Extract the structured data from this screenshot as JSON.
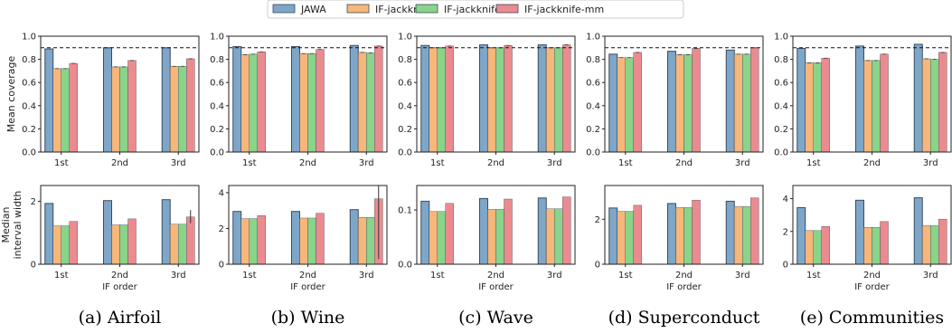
{
  "legend": [
    {
      "name": "JAWA",
      "color": "#7ea6c8"
    },
    {
      "name": "IF-jackknife",
      "color": "#f7b77a"
    },
    {
      "name": "IF-jackknife+",
      "color": "#8ad48a"
    },
    {
      "name": "IF-jackknife-mm",
      "color": "#ec8b8f"
    }
  ],
  "row_labels": {
    "top": [
      "Mean coverage"
    ],
    "bottom": [
      "Median",
      "interval width"
    ]
  },
  "x_tick_labels": [
    "1st",
    "2nd",
    "3rd"
  ],
  "x_axis_label": "IF order",
  "chart_data": [
    {
      "type": "bar",
      "caption": "(a) Airfoil",
      "row": "coverage",
      "categories": [
        "1st",
        "2nd",
        "3rd"
      ],
      "ylim": [
        0,
        1.0
      ],
      "yticks": [
        "0.0",
        "0.2",
        "0.4",
        "0.6",
        "0.8",
        "1.0"
      ],
      "reference_line": 0.9,
      "series": [
        {
          "name": "JAWA",
          "values": [
            0.89,
            0.9,
            0.9
          ]
        },
        {
          "name": "IF-jackknife",
          "values": [
            0.72,
            0.735,
            0.74
          ]
        },
        {
          "name": "IF-jackknife+",
          "values": [
            0.72,
            0.735,
            0.74
          ]
        },
        {
          "name": "IF-jackknife-mm",
          "values": [
            0.765,
            0.79,
            0.805
          ]
        }
      ]
    },
    {
      "type": "bar",
      "caption": "(b) Wine",
      "row": "coverage",
      "categories": [
        "1st",
        "2nd",
        "3rd"
      ],
      "ylim": [
        0,
        1.0
      ],
      "yticks": [
        "0.0",
        "0.2",
        "0.4",
        "0.6",
        "0.8",
        "1.0"
      ],
      "reference_line": 0.9,
      "series": [
        {
          "name": "JAWA",
          "values": [
            0.91,
            0.91,
            0.92
          ]
        },
        {
          "name": "IF-jackknife",
          "values": [
            0.84,
            0.85,
            0.86
          ]
        },
        {
          "name": "IF-jackknife+",
          "values": [
            0.845,
            0.85,
            0.855
          ]
        },
        {
          "name": "IF-jackknife-mm",
          "values": [
            0.865,
            0.885,
            0.915
          ]
        }
      ]
    },
    {
      "type": "bar",
      "caption": "(c) Wave",
      "row": "coverage",
      "categories": [
        "1st",
        "2nd",
        "3rd"
      ],
      "ylim": [
        0,
        1.0
      ],
      "yticks": [
        "0.0",
        "0.2",
        "0.4",
        "0.6",
        "0.8",
        "1.0"
      ],
      "reference_line": 0.9,
      "series": [
        {
          "name": "JAWA",
          "values": [
            0.92,
            0.925,
            0.925
          ]
        },
        {
          "name": "IF-jackknife",
          "values": [
            0.9,
            0.9,
            0.9
          ]
        },
        {
          "name": "IF-jackknife+",
          "values": [
            0.9,
            0.9,
            0.9
          ]
        },
        {
          "name": "IF-jackknife-mm",
          "values": [
            0.915,
            0.92,
            0.925
          ]
        }
      ]
    },
    {
      "type": "bar",
      "caption": "(d) Superconduct",
      "row": "coverage",
      "categories": [
        "1st",
        "2nd",
        "3rd"
      ],
      "ylim": [
        0,
        1.0
      ],
      "yticks": [
        "0.0",
        "0.2",
        "0.4",
        "0.6",
        "0.8",
        "1.0"
      ],
      "reference_line": 0.9,
      "series": [
        {
          "name": "JAWA",
          "values": [
            0.845,
            0.87,
            0.88
          ]
        },
        {
          "name": "IF-jackknife",
          "values": [
            0.815,
            0.84,
            0.845
          ]
        },
        {
          "name": "IF-jackknife+",
          "values": [
            0.815,
            0.84,
            0.845
          ]
        },
        {
          "name": "IF-jackknife-mm",
          "values": [
            0.86,
            0.895,
            0.9
          ]
        }
      ]
    },
    {
      "type": "bar",
      "caption": "(e) Communities",
      "row": "coverage",
      "categories": [
        "1st",
        "2nd",
        "3rd"
      ],
      "ylim": [
        0,
        1.0
      ],
      "yticks": [
        "0.0",
        "0.2",
        "0.4",
        "0.6",
        "0.8",
        "1.0"
      ],
      "reference_line": 0.9,
      "series": [
        {
          "name": "JAWA",
          "values": [
            0.895,
            0.915,
            0.93
          ]
        },
        {
          "name": "IF-jackknife",
          "values": [
            0.77,
            0.79,
            0.805
          ]
        },
        {
          "name": "IF-jackknife+",
          "values": [
            0.77,
            0.79,
            0.8
          ]
        },
        {
          "name": "IF-jackknife-mm",
          "values": [
            0.81,
            0.845,
            0.86
          ]
        }
      ]
    },
    {
      "type": "bar",
      "caption": "(a) Airfoil",
      "row": "width",
      "categories": [
        "1st",
        "2nd",
        "3rd"
      ],
      "ylim": [
        0,
        2.5
      ],
      "yticks": [
        "0",
        "2"
      ],
      "ytick_values": [
        0,
        2
      ],
      "series": [
        {
          "name": "JAWA",
          "values": [
            1.93,
            2.02,
            2.05
          ]
        },
        {
          "name": "IF-jackknife",
          "values": [
            1.22,
            1.25,
            1.27
          ]
        },
        {
          "name": "IF-jackknife+",
          "values": [
            1.22,
            1.25,
            1.27
          ]
        },
        {
          "name": "IF-jackknife-mm",
          "values": [
            1.36,
            1.44,
            1.5
          ]
        }
      ],
      "error_bar": {
        "series": "IF-jackknife-mm",
        "index": 2,
        "low": 1.3,
        "high": 1.72
      }
    },
    {
      "type": "bar",
      "caption": "(b) Wine",
      "row": "width",
      "categories": [
        "1st",
        "2nd",
        "3rd"
      ],
      "ylim": [
        0,
        4.4
      ],
      "yticks": [
        "0",
        "2",
        "4"
      ],
      "ytick_values": [
        0,
        2,
        4
      ],
      "series": [
        {
          "name": "JAWA",
          "values": [
            2.95,
            2.95,
            3.05
          ]
        },
        {
          "name": "IF-jackknife",
          "values": [
            2.55,
            2.58,
            2.62
          ]
        },
        {
          "name": "IF-jackknife+",
          "values": [
            2.55,
            2.58,
            2.62
          ]
        },
        {
          "name": "IF-jackknife-mm",
          "values": [
            2.72,
            2.85,
            3.65
          ]
        }
      ],
      "error_bar": {
        "series": "IF-jackknife-mm",
        "index": 2,
        "low": 0.3,
        "high": 4.4
      }
    },
    {
      "type": "bar",
      "caption": "(c) Wave",
      "row": "width",
      "categories": [
        "1st",
        "2nd",
        "3rd"
      ],
      "ylim": [
        0,
        0.145
      ],
      "yticks": [
        "0.0",
        "0.1"
      ],
      "ytick_values": [
        0,
        0.1
      ],
      "series": [
        {
          "name": "JAWA",
          "values": [
            0.116,
            0.121,
            0.122
          ]
        },
        {
          "name": "IF-jackknife",
          "values": [
            0.097,
            0.101,
            0.102
          ]
        },
        {
          "name": "IF-jackknife+",
          "values": [
            0.097,
            0.101,
            0.102
          ]
        },
        {
          "name": "IF-jackknife-mm",
          "values": [
            0.112,
            0.12,
            0.124
          ]
        }
      ]
    },
    {
      "type": "bar",
      "caption": "(d) Superconduct",
      "row": "width",
      "categories": [
        "1st",
        "2nd",
        "3rd"
      ],
      "ylim": [
        0,
        3.5
      ],
      "yticks": [
        "0",
        "2"
      ],
      "ytick_values": [
        0,
        2
      ],
      "series": [
        {
          "name": "JAWA",
          "values": [
            2.5,
            2.7,
            2.8
          ]
        },
        {
          "name": "IF-jackknife",
          "values": [
            2.35,
            2.52,
            2.57
          ]
        },
        {
          "name": "IF-jackknife+",
          "values": [
            2.35,
            2.52,
            2.57
          ]
        },
        {
          "name": "IF-jackknife-mm",
          "values": [
            2.62,
            2.85,
            2.95
          ]
        }
      ]
    },
    {
      "type": "bar",
      "caption": "(e) Communities",
      "row": "width",
      "categories": [
        "1st",
        "2nd",
        "3rd"
      ],
      "ylim": [
        0,
        4.8
      ],
      "yticks": [
        "0",
        "2",
        "4"
      ],
      "ytick_values": [
        0,
        2,
        4
      ],
      "series": [
        {
          "name": "JAWA",
          "values": [
            3.45,
            3.9,
            4.05
          ]
        },
        {
          "name": "IF-jackknife",
          "values": [
            2.05,
            2.25,
            2.35
          ]
        },
        {
          "name": "IF-jackknife+",
          "values": [
            2.05,
            2.25,
            2.35
          ]
        },
        {
          "name": "IF-jackknife-mm",
          "values": [
            2.3,
            2.6,
            2.75
          ]
        }
      ]
    }
  ]
}
